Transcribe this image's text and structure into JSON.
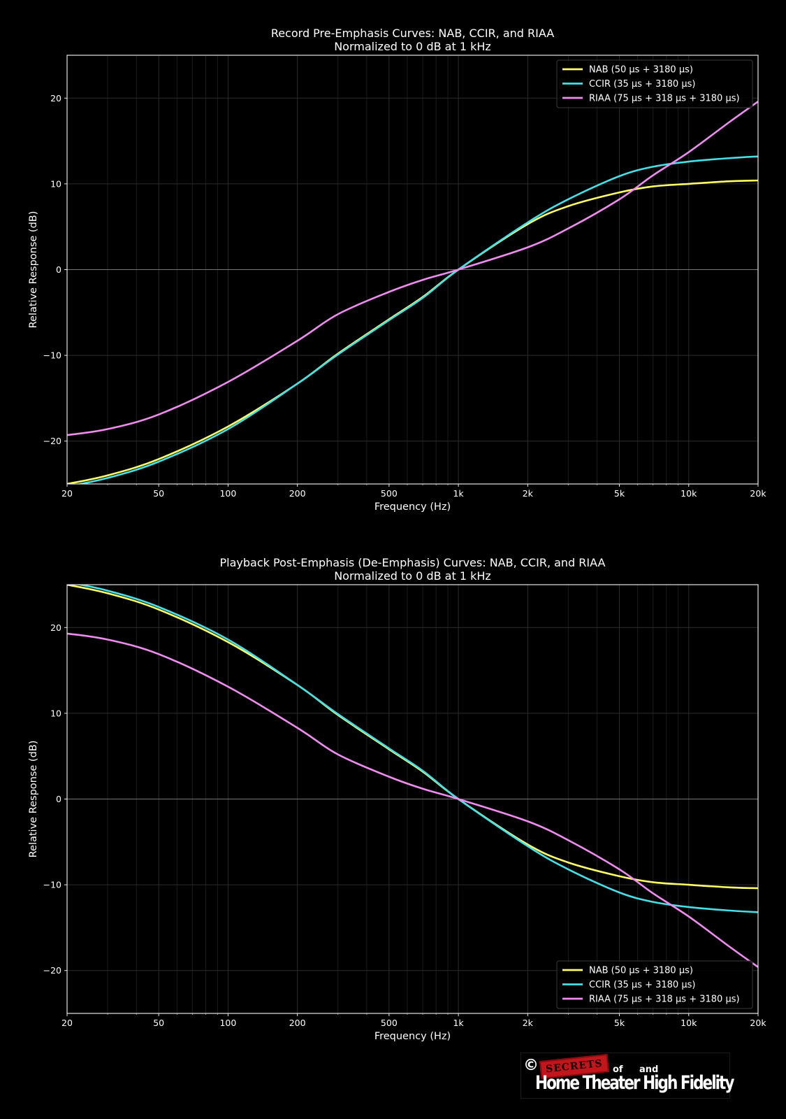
{
  "chart_data": [
    {
      "type": "line",
      "title": "Record Pre-Emphasis Curves: NAB, CCIR, and RIAA",
      "subtitle": "Normalized to 0 dB at 1 kHz",
      "xlabel": "Frequency (Hz)",
      "ylabel": "Relative Response (dB)",
      "xscale": "log",
      "xlim": [
        20,
        20000
      ],
      "ylim": [
        -25,
        25
      ],
      "xticks": [
        20,
        50,
        100,
        200,
        500,
        1000,
        2000,
        5000,
        10000,
        20000
      ],
      "xtick_labels": [
        "20",
        "50",
        "100",
        "200",
        "500",
        "1k",
        "2k",
        "5k",
        "10k",
        "20k"
      ],
      "yticks": [
        -20,
        -10,
        0,
        10,
        20
      ],
      "ytick_labels": [
        "−20",
        "−10",
        "0",
        "10",
        "20"
      ],
      "grid": true,
      "legend": "top-right",
      "series": [
        {
          "name": "NAB (50 µs + 3180 µs)",
          "color": "#ffff66",
          "x": [
            20,
            30,
            50,
            100,
            200,
            300,
            500,
            700,
            1000,
            2000,
            3000,
            5000,
            7000,
            10000,
            15000,
            20000
          ],
          "y": [
            -25,
            -24,
            -22.1,
            -18.3,
            -13.3,
            -9.8,
            -5.8,
            -3.2,
            0,
            5.3,
            7.4,
            9.0,
            9.7,
            10.0,
            10.3,
            10.4
          ]
        },
        {
          "name": "CCIR (35 µs + 3180 µs)",
          "color": "#44e0e8",
          "x": [
            20,
            30,
            50,
            100,
            200,
            300,
            500,
            700,
            1000,
            2000,
            3000,
            5000,
            7000,
            10000,
            15000,
            20000
          ],
          "y": [
            -25.3,
            -24.3,
            -22.4,
            -18.6,
            -13.3,
            -9.9,
            -5.9,
            -3.3,
            0,
            5.5,
            8.2,
            10.9,
            12.0,
            12.6,
            13.0,
            13.2
          ]
        },
        {
          "name": "RIAA (75 µs + 318 µs + 3180 µs)",
          "color": "#f08cf0",
          "x": [
            20,
            30,
            50,
            100,
            200,
            300,
            500,
            700,
            1000,
            2000,
            3000,
            5000,
            7000,
            10000,
            15000,
            20000
          ],
          "y": [
            -19.3,
            -18.6,
            -16.9,
            -13.1,
            -8.3,
            -5.2,
            -2.6,
            -1.2,
            0,
            2.6,
            4.8,
            8.2,
            11.0,
            13.7,
            17.2,
            19.6
          ]
        }
      ]
    },
    {
      "type": "line",
      "title": "Playback Post-Emphasis (De-Emphasis) Curves: NAB, CCIR, and RIAA",
      "subtitle": "Normalized to 0 dB at 1 kHz",
      "xlabel": "Frequency (Hz)",
      "ylabel": "Relative Response (dB)",
      "xscale": "log",
      "xlim": [
        20,
        20000
      ],
      "ylim": [
        -25,
        25
      ],
      "xticks": [
        20,
        50,
        100,
        200,
        500,
        1000,
        2000,
        5000,
        10000,
        20000
      ],
      "xtick_labels": [
        "20",
        "50",
        "100",
        "200",
        "500",
        "1k",
        "2k",
        "5k",
        "10k",
        "20k"
      ],
      "yticks": [
        -20,
        -10,
        0,
        10,
        20
      ],
      "ytick_labels": [
        "−20",
        "−10",
        "0",
        "10",
        "20"
      ],
      "grid": true,
      "legend": "bottom-right",
      "series": [
        {
          "name": "NAB (50 µs + 3180 µs)",
          "color": "#ffff66",
          "x": [
            20,
            30,
            50,
            100,
            200,
            300,
            500,
            700,
            1000,
            2000,
            3000,
            5000,
            7000,
            10000,
            15000,
            20000
          ],
          "y": [
            25,
            24,
            22.1,
            18.3,
            13.3,
            9.8,
            5.8,
            3.2,
            0,
            -5.3,
            -7.4,
            -9.0,
            -9.7,
            -10.0,
            -10.3,
            -10.4
          ]
        },
        {
          "name": "CCIR (35 µs + 3180 µs)",
          "color": "#44e0e8",
          "x": [
            20,
            30,
            50,
            100,
            200,
            300,
            500,
            700,
            1000,
            2000,
            3000,
            5000,
            7000,
            10000,
            15000,
            20000
          ],
          "y": [
            25.3,
            24.3,
            22.4,
            18.6,
            13.3,
            9.9,
            5.9,
            3.3,
            0,
            -5.5,
            -8.2,
            -10.9,
            -12.0,
            -12.6,
            -13.0,
            -13.2
          ]
        },
        {
          "name": "RIAA (75 µs + 318 µs + 3180 µs)",
          "color": "#f08cf0",
          "x": [
            20,
            30,
            50,
            100,
            200,
            300,
            500,
            700,
            1000,
            2000,
            3000,
            5000,
            7000,
            10000,
            15000,
            20000
          ],
          "y": [
            19.3,
            18.6,
            16.9,
            13.1,
            8.3,
            5.2,
            2.6,
            1.2,
            0,
            -2.6,
            -4.8,
            -8.2,
            -11.0,
            -13.7,
            -17.2,
            -19.6
          ]
        }
      ]
    }
  ],
  "logo": {
    "copyright": "©",
    "secrets": "SECRETS",
    "of": "of",
    "and": "and",
    "main": "Home Theater High Fidelity"
  }
}
